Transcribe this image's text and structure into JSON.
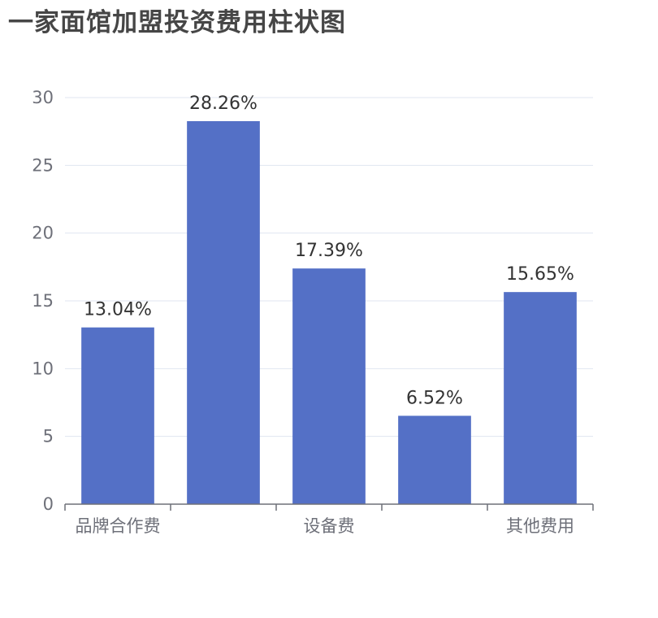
{
  "chart_data": {
    "type": "bar",
    "title": "一家面馆加盟投资费用柱状图",
    "categories": [
      "品牌合作费",
      "",
      "设备费",
      "",
      "其他费用"
    ],
    "tick_labels": [
      "品牌合作费",
      "设备费",
      "其他费用"
    ],
    "values": [
      13.04,
      28.26,
      17.39,
      6.52,
      15.65
    ],
    "data_labels": [
      "13.04%",
      "28.26%",
      "17.39%",
      "6.52%",
      "15.65%"
    ],
    "y_ticks": [
      "0",
      "5",
      "10",
      "15",
      "20",
      "25",
      "30"
    ],
    "ylim": [
      0,
      30
    ],
    "grid": true,
    "colors": {
      "bar": "#5470c6",
      "grid": "#e0e6f1",
      "axis": "#6e7079",
      "title": "#464646"
    }
  }
}
